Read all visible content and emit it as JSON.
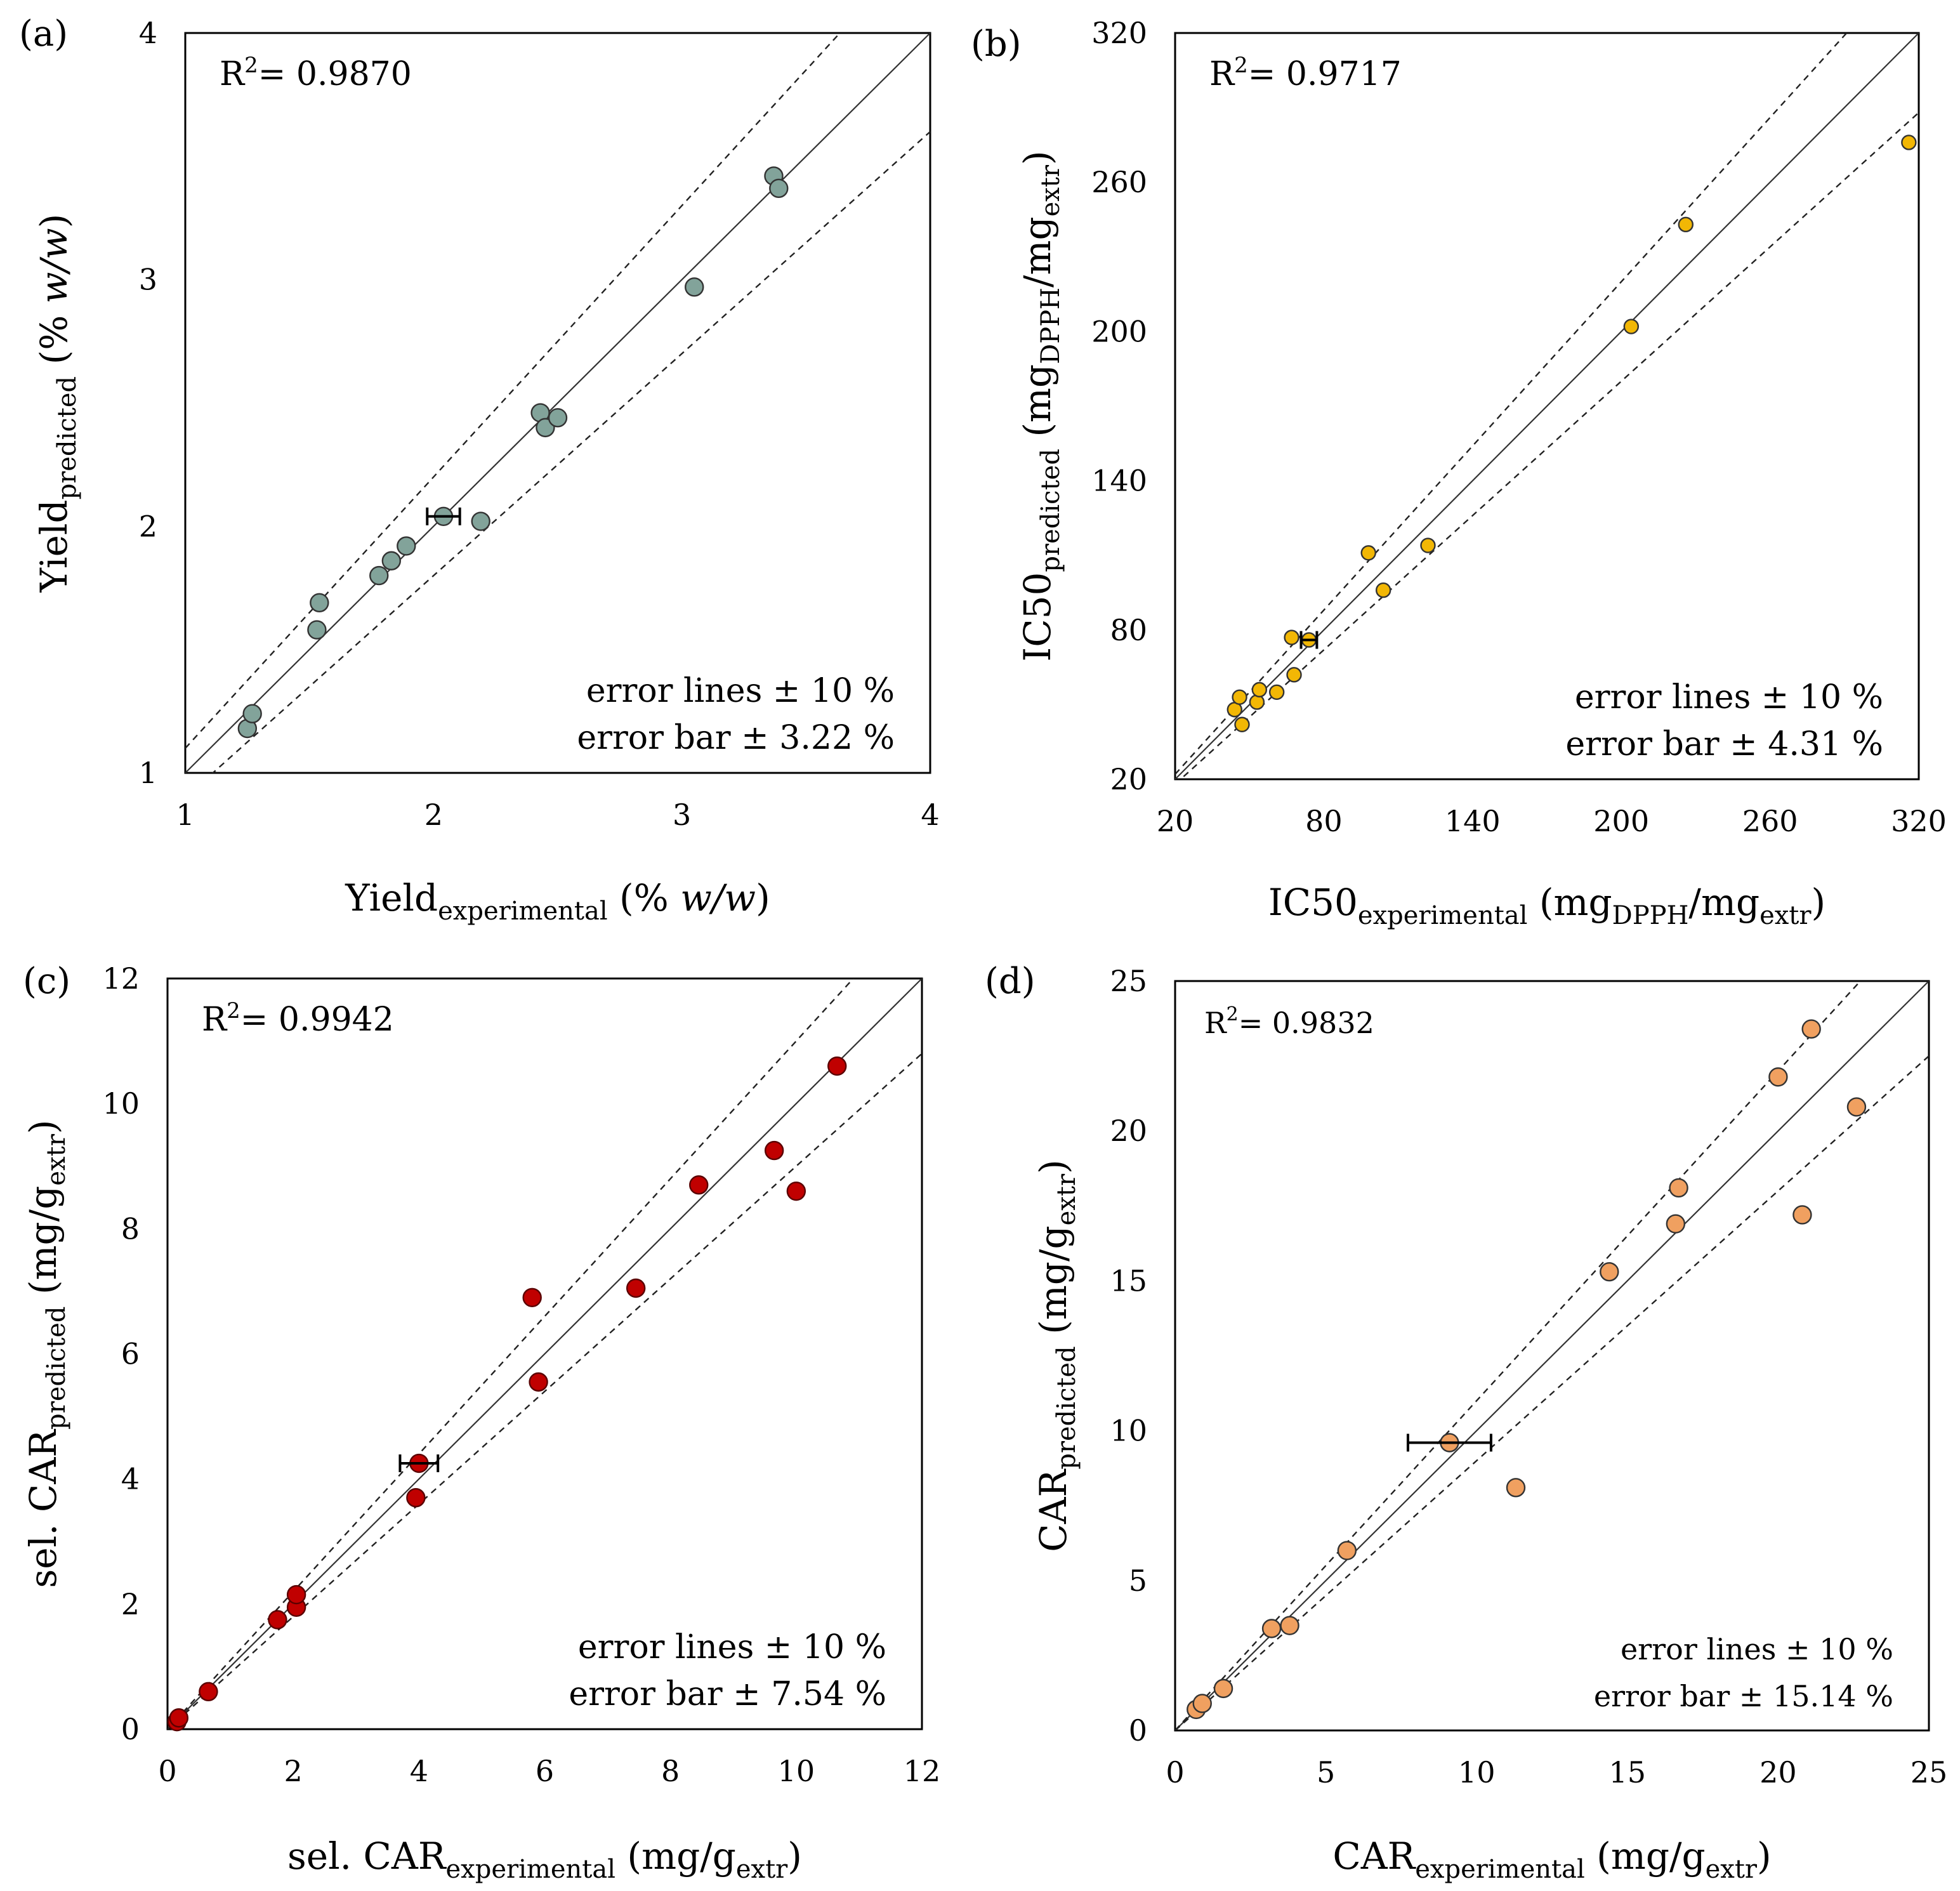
{
  "chart_data": [
    {
      "panel": "(a)",
      "type": "scatter",
      "xlim": [
        1,
        4
      ],
      "ylim": [
        1,
        4
      ],
      "xticks": [
        "1",
        "2",
        "3",
        "4"
      ],
      "yticks": [
        "1",
        "2",
        "3",
        "4"
      ],
      "xlabel": {
        "main": "Yield",
        "sub": "experimental",
        "unit_pre": " (% ",
        "unit_it": "w/w",
        "unit_post": ")"
      },
      "ylabel": {
        "main": "Yield",
        "sub": "predicted",
        "unit_pre": " (% ",
        "unit_it": "w/w",
        "unit_post": ")"
      },
      "r2_label": "R",
      "r2_sup": "2",
      "r2_value": "= 0.9870",
      "legend_line1": "error lines  ± 10 %",
      "legend_line2": "error bar ± 3.22 %",
      "error_lines_pct": 10,
      "marker_color": "#82a39a",
      "points": [
        [
          1.25,
          1.18
        ],
        [
          1.27,
          1.24
        ],
        [
          1.53,
          1.58
        ],
        [
          1.54,
          1.69
        ],
        [
          1.78,
          1.8
        ],
        [
          1.83,
          1.86
        ],
        [
          1.89,
          1.92
        ],
        [
          2.04,
          2.04
        ],
        [
          2.19,
          2.02
        ],
        [
          2.43,
          2.46
        ],
        [
          2.45,
          2.4
        ],
        [
          2.5,
          2.44
        ],
        [
          3.05,
          2.97
        ],
        [
          3.37,
          3.42
        ],
        [
          3.39,
          3.37
        ]
      ],
      "error_bar": {
        "x": 2.04,
        "y": 2.04,
        "pct": 3.22
      }
    },
    {
      "panel": "(b)",
      "type": "scatter",
      "xlim": [
        20,
        320
      ],
      "ylim": [
        20,
        320
      ],
      "xticks": [
        "20",
        "80",
        "140",
        "200",
        "260",
        "320"
      ],
      "yticks": [
        "20",
        "80",
        "140",
        "200",
        "260",
        "320"
      ],
      "xlabel": {
        "main": "IC50",
        "sub": "experimental",
        "unit_pre": " (mg",
        "unit_sub1": "DPPH",
        "unit_mid": "/mg",
        "unit_sub2": "extr",
        "unit_post": ")"
      },
      "ylabel": {
        "main": "IC50",
        "sub": "predicted",
        "unit_pre": " (mg",
        "unit_sub1": "DPPH",
        "unit_mid": "/mg",
        "unit_sub2": "extr",
        "unit_post": ")"
      },
      "r2_label": "R",
      "r2_sup": "2",
      "r2_value": "= 0.9717",
      "legend_line1": "error lines  ± 10 %",
      "legend_line2": "error bar ± 4.31 %",
      "error_lines_pct": 10,
      "marker_color": "#f2b705",
      "points": [
        [
          44,
          48
        ],
        [
          46,
          53
        ],
        [
          47,
          42
        ],
        [
          53,
          51
        ],
        [
          54,
          56
        ],
        [
          61,
          55
        ],
        [
          67,
          77
        ],
        [
          68,
          62
        ],
        [
          74,
          76
        ],
        [
          98,
          111
        ],
        [
          104,
          96
        ],
        [
          122,
          114
        ],
        [
          204,
          202
        ],
        [
          226,
          243
        ],
        [
          316,
          276
        ]
      ],
      "error_bar": {
        "x": 74,
        "y": 76,
        "pct": 4.31
      }
    },
    {
      "panel": "(c)",
      "type": "scatter",
      "xlim": [
        0,
        12
      ],
      "ylim": [
        0,
        12
      ],
      "xticks": [
        "0",
        "2",
        "4",
        "6",
        "8",
        "10",
        "12"
      ],
      "yticks": [
        "0",
        "2",
        "4",
        "6",
        "8",
        "10",
        "12"
      ],
      "xlabel": {
        "main": "sel. CAR",
        "sub": "experimental",
        "unit_pre": " (mg/g",
        "unit_sub2": "extr",
        "unit_post": ")"
      },
      "ylabel": {
        "main": "sel. CAR",
        "sub": "predicted",
        "unit_pre": " (mg/g",
        "unit_sub2": "extr",
        "unit_post": ")"
      },
      "r2_label": "R",
      "r2_sup": "2",
      "r2_value": "= 0.9942",
      "legend_line1": "error lines  ± 10 %",
      "legend_line2": "error bar ± 7.54 %",
      "error_lines_pct": 10,
      "marker_color": "#c00000",
      "points": [
        [
          0.15,
          0.12
        ],
        [
          0.18,
          0.18
        ],
        [
          0.65,
          0.6
        ],
        [
          1.75,
          1.75
        ],
        [
          2.05,
          1.95
        ],
        [
          2.05,
          2.15
        ],
        [
          3.95,
          3.7
        ],
        [
          4.0,
          4.25
        ],
        [
          5.8,
          6.9
        ],
        [
          5.9,
          5.55
        ],
        [
          7.45,
          7.05
        ],
        [
          8.45,
          8.7
        ],
        [
          9.65,
          9.25
        ],
        [
          10.0,
          8.6
        ],
        [
          10.65,
          10.6
        ]
      ],
      "error_bar": {
        "x": 4.0,
        "y": 4.25,
        "pct": 7.54
      }
    },
    {
      "panel": "(d)",
      "type": "scatter",
      "xlim": [
        0,
        25
      ],
      "ylim": [
        0,
        25
      ],
      "xticks": [
        "0",
        "5",
        "10",
        "15",
        "20",
        "25"
      ],
      "yticks": [
        "0",
        "5",
        "10",
        "15",
        "20",
        "25"
      ],
      "xlabel": {
        "main": "CAR",
        "sub": "experimental",
        "unit_pre": " (mg/g",
        "unit_sub2": "extr",
        "unit_post": ")"
      },
      "ylabel": {
        "main": "CAR",
        "sub": "predicted",
        "unit_pre": " (mg/g",
        "unit_sub2": "extr",
        "unit_post": ")"
      },
      "r2_label": "R",
      "r2_sup": "2",
      "r2_value": "= 0.9832",
      "legend_line1": "error lines ± 10 %",
      "legend_line2": "error bar ±  15.14 %",
      "error_lines_pct": 10,
      "marker_color": "#f0a060",
      "points": [
        [
          0.7,
          0.7
        ],
        [
          0.9,
          0.9
        ],
        [
          1.6,
          1.4
        ],
        [
          3.2,
          3.4
        ],
        [
          3.8,
          3.5
        ],
        [
          5.7,
          6.0
        ],
        [
          9.1,
          9.6
        ],
        [
          11.3,
          8.1
        ],
        [
          14.4,
          15.3
        ],
        [
          16.6,
          16.9
        ],
        [
          16.7,
          18.1
        ],
        [
          20.0,
          21.8
        ],
        [
          20.8,
          17.2
        ],
        [
          21.1,
          23.4
        ],
        [
          22.6,
          20.8
        ]
      ],
      "error_bar": {
        "x": 9.1,
        "y": 9.6,
        "pct": 15.14
      }
    }
  ]
}
